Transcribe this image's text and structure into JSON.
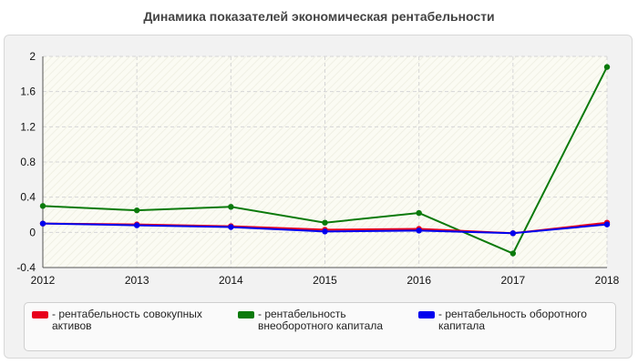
{
  "chart_data": {
    "type": "line",
    "title": "Динамика показателей экономическая рентабельности",
    "xlabel": "",
    "ylabel": "",
    "x": [
      "2012",
      "2013",
      "2014",
      "2015",
      "2016",
      "2017",
      "2018"
    ],
    "ylim": [
      -0.4,
      2
    ],
    "yticks": [
      "-0.4",
      "0",
      "0.4",
      "0.8",
      "1.2",
      "1.6",
      "2"
    ],
    "grid": true,
    "legend": "bottom",
    "series": [
      {
        "name": "- рентабельность совокупных активов",
        "color": "#e8001c",
        "values": [
          0.1,
          0.09,
          0.07,
          0.03,
          0.04,
          -0.01,
          0.11
        ]
      },
      {
        "name": "- рентабельность внеоборотного капитала",
        "color": "#0b7a0b",
        "values": [
          0.3,
          0.25,
          0.29,
          0.11,
          0.22,
          -0.24,
          1.88
        ]
      },
      {
        "name": "- рентабельность оборотного капитала",
        "color": "#0000ee",
        "values": [
          0.1,
          0.08,
          0.06,
          0.01,
          0.02,
          -0.01,
          0.09
        ]
      }
    ]
  }
}
